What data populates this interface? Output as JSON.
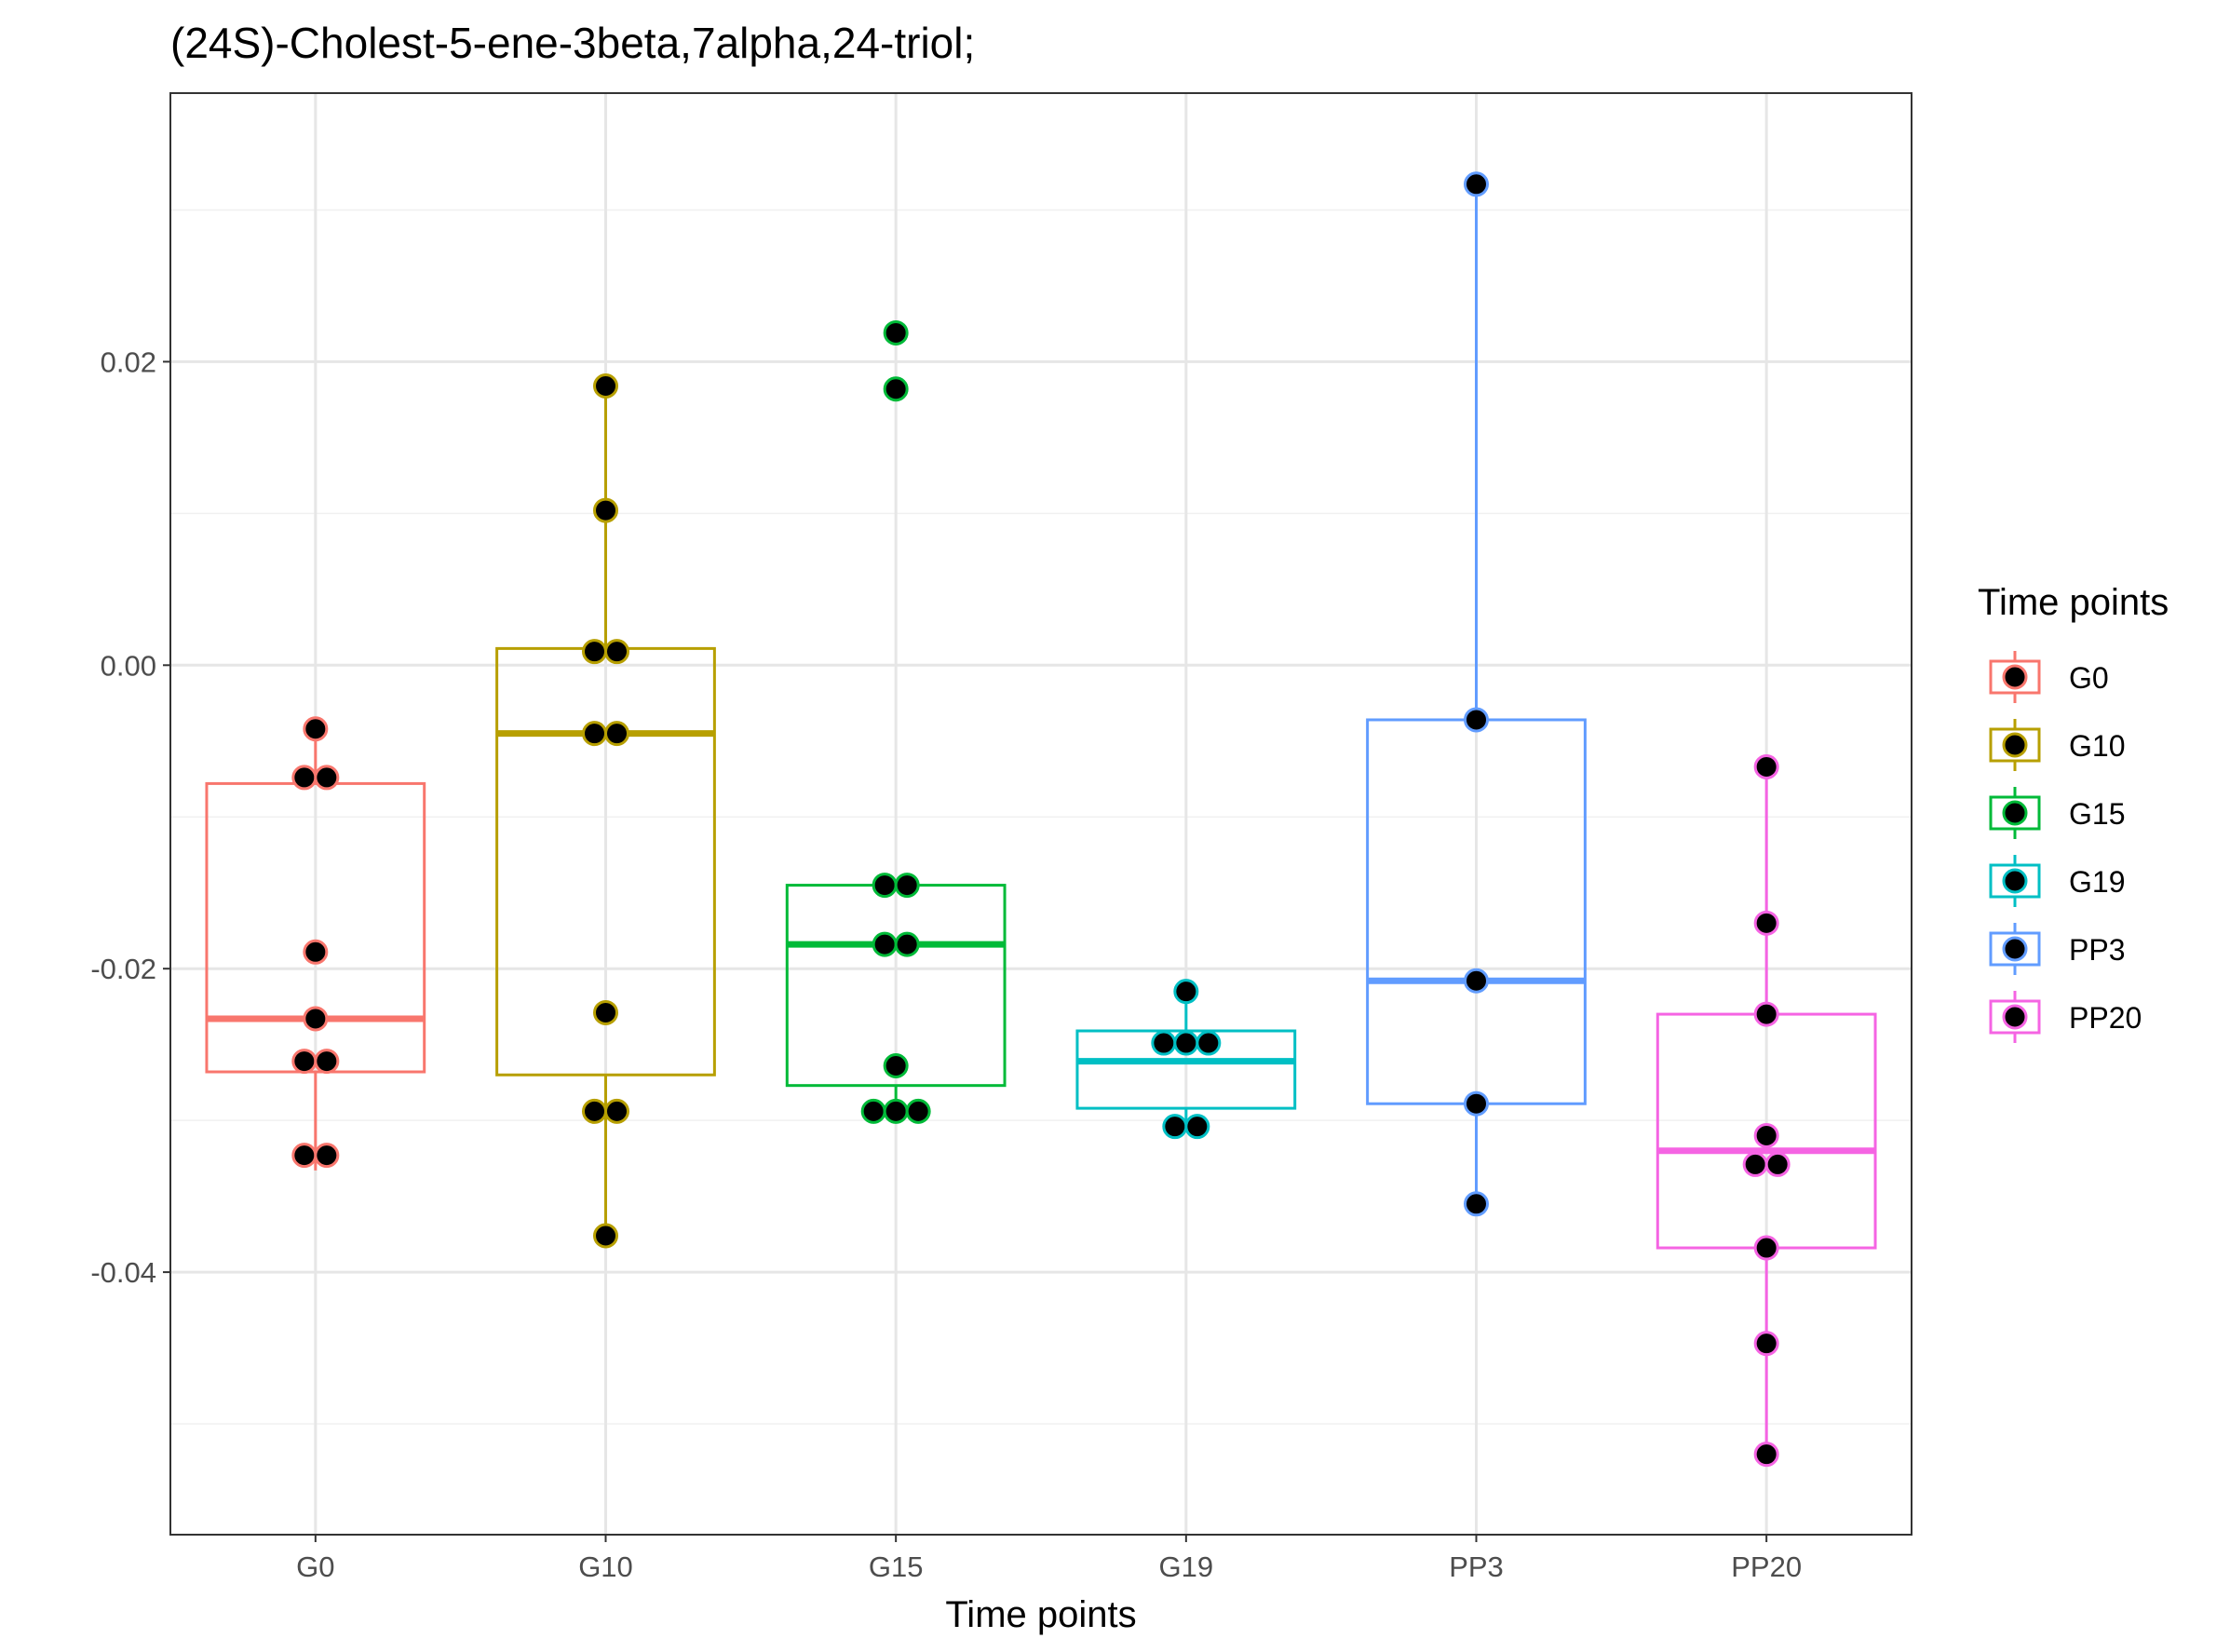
{
  "chart_data": {
    "type": "boxplot",
    "title": "(24S)-Cholest-5-ene-3beta,7alpha,24-triol;",
    "xlabel": "Time points",
    "ylabel": "",
    "categories": [
      "G0",
      "G10",
      "G15",
      "G19",
      "PP3",
      "PP20"
    ],
    "y_ticks": [
      {
        "value": 0.02,
        "label": "0.02"
      },
      {
        "value": 0.0,
        "label": "0.00"
      },
      {
        "value": -0.02,
        "label": "-0.02"
      },
      {
        "value": -0.04,
        "label": "-0.04"
      }
    ],
    "ylim": [
      -0.0573,
      0.0377
    ],
    "grid": true,
    "legend": {
      "title": "Time points",
      "position": "right"
    },
    "series": [
      {
        "name": "G0",
        "color": "#F8766D",
        "box": {
          "whisker_low": -0.0333,
          "q1": -0.0268,
          "median": -0.0233,
          "q3": -0.0078,
          "whisker_high": -0.0042
        },
        "points": [
          -0.0042,
          -0.0074,
          -0.0074,
          -0.0189,
          -0.0233,
          -0.0261,
          -0.0261,
          -0.0323,
          -0.0323
        ]
      },
      {
        "name": "G10",
        "color": "#B79F00",
        "box": {
          "whisker_low": -0.0382,
          "q1": -0.027,
          "median": -0.0045,
          "q3": 0.0011,
          "whisker_high": 0.0184
        },
        "points": [
          0.0184,
          0.0102,
          0.0009,
          0.0009,
          -0.0045,
          -0.0045,
          -0.0229,
          -0.0294,
          -0.0294,
          -0.0376
        ]
      },
      {
        "name": "G15",
        "color": "#00BA38",
        "box": {
          "whisker_low": -0.0302,
          "q1": -0.0277,
          "median": -0.0184,
          "q3": -0.0145,
          "whisker_high": -0.0145
        },
        "outliers": [
          0.0219,
          0.0182
        ],
        "points": [
          0.0219,
          0.0182,
          -0.0145,
          -0.0145,
          -0.0184,
          -0.0184,
          -0.0264,
          -0.0294,
          -0.0294,
          -0.0294
        ]
      },
      {
        "name": "G19",
        "color": "#00BFC4",
        "box": {
          "whisker_low": -0.0304,
          "q1": -0.0292,
          "median": -0.0261,
          "q3": -0.0241,
          "whisker_high": -0.0215
        },
        "points": [
          -0.0215,
          -0.0249,
          -0.0249,
          -0.0249,
          -0.0304,
          -0.0304
        ]
      },
      {
        "name": "PP3",
        "color": "#619CFF",
        "box": {
          "whisker_low": -0.0355,
          "q1": -0.0289,
          "median": -0.0208,
          "q3": -0.0036,
          "whisker_high": 0.0317
        },
        "points": [
          0.0317,
          -0.0036,
          -0.0208,
          -0.0289,
          -0.0355
        ]
      },
      {
        "name": "PP20",
        "color": "#F564E3",
        "box": {
          "whisker_low": -0.052,
          "q1": -0.0384,
          "median": -0.032,
          "q3": -0.023,
          "whisker_high": -0.0067
        },
        "points": [
          -0.0067,
          -0.017,
          -0.023,
          -0.031,
          -0.0329,
          -0.0329,
          -0.0384,
          -0.0447,
          -0.052
        ]
      }
    ]
  }
}
